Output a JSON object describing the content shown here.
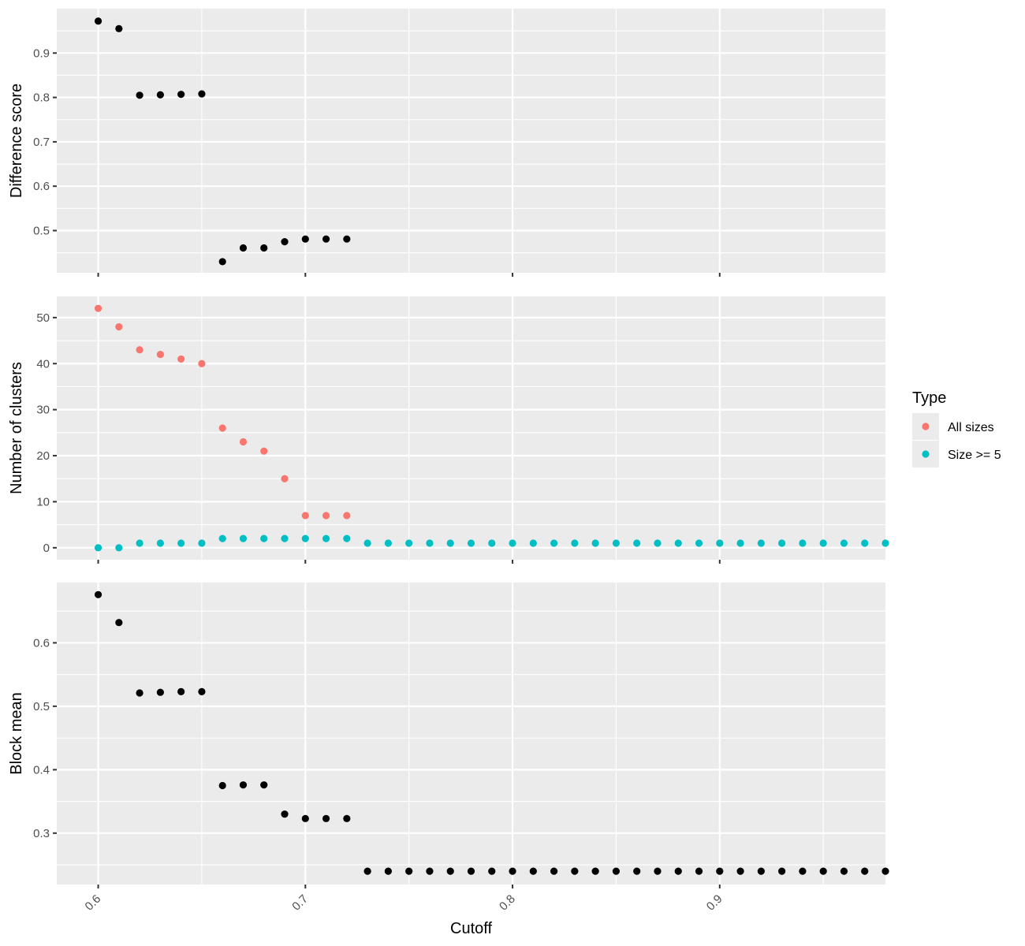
{
  "chart_data": [
    {
      "type": "scatter",
      "panel": "top",
      "ylabel": "Difference score",
      "xlim": [
        0.58,
        0.98
      ],
      "ylim": [
        0.405,
        1.0
      ],
      "x_ticks": [
        0.6,
        0.7,
        0.8,
        0.9
      ],
      "y_ticks": [
        0.5,
        0.6,
        0.7,
        0.8,
        0.9
      ],
      "y_tick_labels": [
        "0.5",
        "0.6",
        "0.7",
        "0.8",
        "0.9"
      ],
      "color": "#000000",
      "series": [
        {
          "x": [
            0.6,
            0.61,
            0.62,
            0.63,
            0.64,
            0.65,
            0.66,
            0.67,
            0.68,
            0.69,
            0.7,
            0.71,
            0.72
          ],
          "y": [
            0.972,
            0.955,
            0.805,
            0.806,
            0.807,
            0.808,
            0.43,
            0.461,
            0.461,
            0.475,
            0.481,
            0.481,
            0.481
          ]
        }
      ]
    },
    {
      "type": "scatter",
      "panel": "middle",
      "ylabel": "Number of clusters",
      "xlim": [
        0.58,
        0.98
      ],
      "ylim": [
        -2.6,
        54.6
      ],
      "x_ticks": [
        0.6,
        0.7,
        0.8,
        0.9
      ],
      "y_ticks": [
        0,
        10,
        20,
        30,
        40,
        50
      ],
      "y_tick_labels": [
        "0",
        "10",
        "20",
        "30",
        "40",
        "50"
      ],
      "legend": {
        "title": "Type",
        "position": "right"
      },
      "series": [
        {
          "name": "All sizes",
          "color": "#F8766D",
          "x": [
            0.6,
            0.61,
            0.62,
            0.63,
            0.64,
            0.65,
            0.66,
            0.67,
            0.68,
            0.69,
            0.7,
            0.71,
            0.72
          ],
          "y": [
            52,
            48,
            43,
            42,
            41,
            40,
            26,
            23,
            21,
            15,
            7,
            7,
            7
          ]
        },
        {
          "name": "Size >= 5",
          "color": "#00BFC4",
          "x": [
            0.6,
            0.61,
            0.62,
            0.63,
            0.64,
            0.65,
            0.66,
            0.67,
            0.68,
            0.69,
            0.7,
            0.71,
            0.72,
            0.73,
            0.74,
            0.75,
            0.76,
            0.77,
            0.78,
            0.79,
            0.8,
            0.81,
            0.82,
            0.83,
            0.84,
            0.85,
            0.86,
            0.87,
            0.88,
            0.89,
            0.9,
            0.91,
            0.92,
            0.93,
            0.94,
            0.95,
            0.96,
            0.97,
            0.98
          ],
          "y": [
            0,
            0,
            1,
            1,
            1,
            1,
            2,
            2,
            2,
            2,
            2,
            2,
            2,
            1,
            1,
            1,
            1,
            1,
            1,
            1,
            1,
            1,
            1,
            1,
            1,
            1,
            1,
            1,
            1,
            1,
            1,
            1,
            1,
            1,
            1,
            1,
            1,
            1,
            1
          ]
        }
      ]
    },
    {
      "type": "scatter",
      "panel": "bottom",
      "ylabel": "Block mean",
      "xlabel": "Cutoff",
      "xlim": [
        0.58,
        0.98
      ],
      "ylim": [
        0.219,
        0.695
      ],
      "x_ticks": [
        0.6,
        0.7,
        0.8,
        0.9
      ],
      "x_tick_labels": [
        "0.6",
        "0.7",
        "0.8",
        "0.9"
      ],
      "y_ticks": [
        0.3,
        0.4,
        0.5,
        0.6
      ],
      "y_tick_labels": [
        "0.3",
        "0.4",
        "0.5",
        "0.6"
      ],
      "color": "#000000",
      "series": [
        {
          "x": [
            0.6,
            0.61,
            0.62,
            0.63,
            0.64,
            0.65,
            0.66,
            0.67,
            0.68,
            0.69,
            0.7,
            0.71,
            0.72,
            0.73,
            0.74,
            0.75,
            0.76,
            0.77,
            0.78,
            0.79,
            0.8,
            0.81,
            0.82,
            0.83,
            0.84,
            0.85,
            0.86,
            0.87,
            0.88,
            0.89,
            0.9,
            0.91,
            0.92,
            0.93,
            0.94,
            0.95,
            0.96,
            0.97,
            0.98
          ],
          "y": [
            0.676,
            0.632,
            0.521,
            0.522,
            0.523,
            0.523,
            0.375,
            0.376,
            0.376,
            0.33,
            0.323,
            0.323,
            0.323,
            0.24,
            0.24,
            0.24,
            0.24,
            0.24,
            0.24,
            0.24,
            0.24,
            0.24,
            0.24,
            0.24,
            0.24,
            0.24,
            0.24,
            0.24,
            0.24,
            0.24,
            0.24,
            0.24,
            0.24,
            0.24,
            0.24,
            0.24,
            0.24,
            0.24,
            0.24
          ]
        }
      ]
    }
  ]
}
